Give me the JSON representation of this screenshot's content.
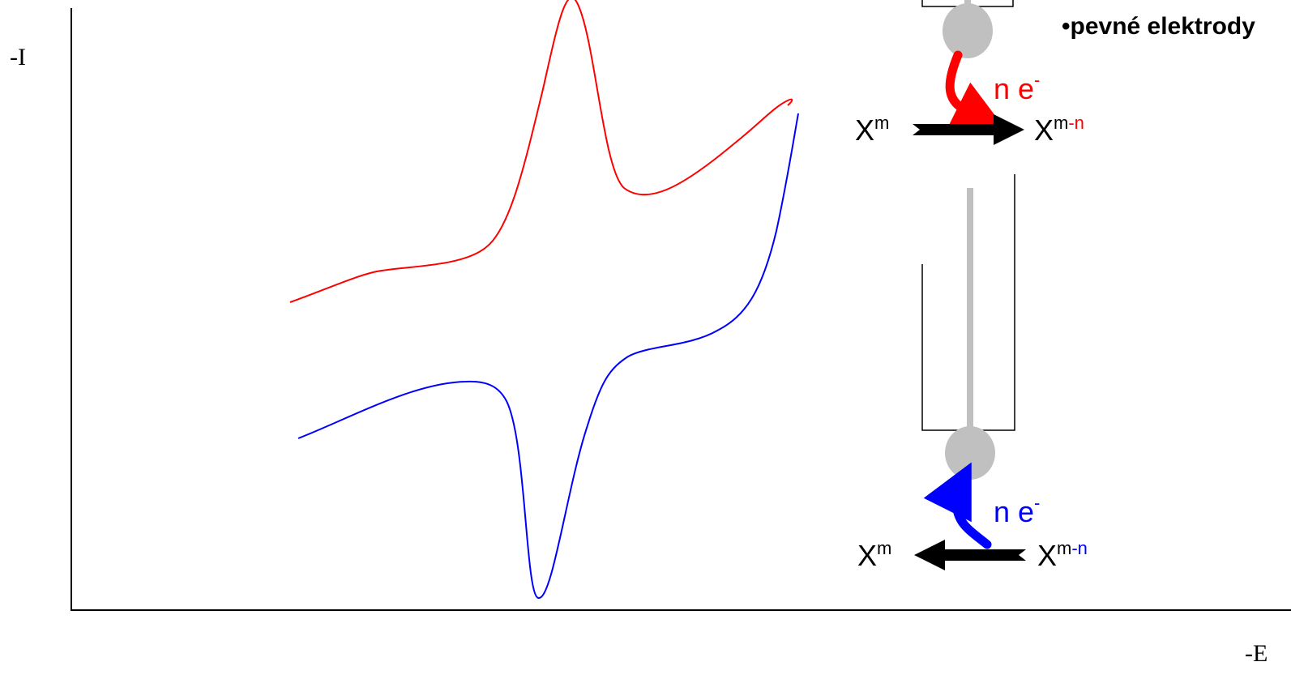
{
  "axes": {
    "y_label": "-I",
    "x_label": "-E"
  },
  "heading": "•pevné elektrody",
  "colors": {
    "reduction": "#ff0000",
    "oxidation": "#0000ff",
    "electrode": "#c0c0c0",
    "arrow": "#000000",
    "axis": "#000000"
  },
  "reduction_panel": {
    "electron_count": "n e",
    "electron_charge": "-",
    "left_species": "X",
    "left_charge": "m",
    "right_species": "X",
    "right_charge_m": "m",
    "right_charge_n": "-n"
  },
  "oxidation_panel": {
    "electron_count": "n e",
    "electron_charge": "-",
    "left_species": "X",
    "left_charge": "m",
    "right_species": "X",
    "right_charge_m": "m",
    "right_charge_n": "-n"
  }
}
